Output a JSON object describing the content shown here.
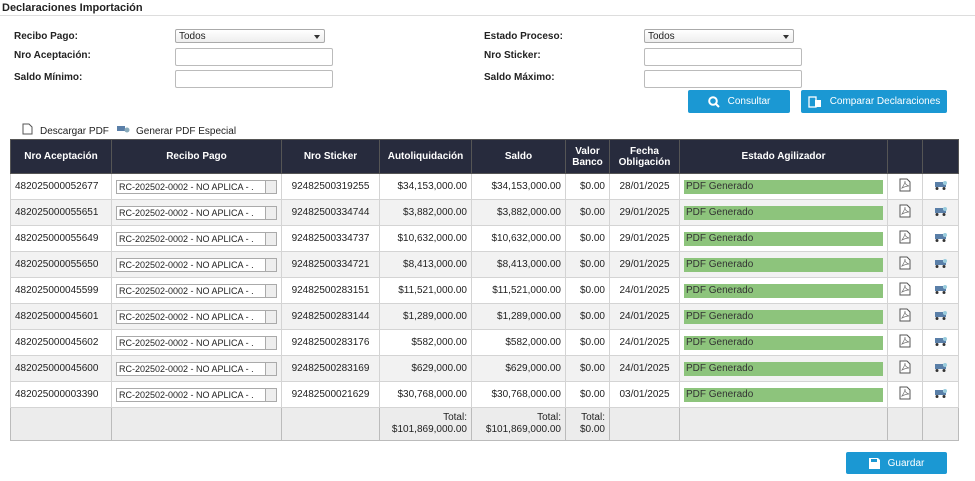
{
  "header": {
    "title": "Declaraciones Importación"
  },
  "filters": {
    "left": [
      {
        "label": "Recibo Pago:",
        "value": "Todos"
      },
      {
        "label": "Nro Aceptación:"
      },
      {
        "label": "Saldo Mínimo:"
      }
    ],
    "right": [
      {
        "label": "Estado Proceso:",
        "value": "Todos"
      },
      {
        "label": "Nro Sticker:"
      },
      {
        "label": "Saldo Máximo:"
      }
    ]
  },
  "buttons": {
    "consultar": "Consultar",
    "comparar": "Comparar Declaraciones",
    "guardar": "Guardar"
  },
  "links": [
    "Descargar PDF",
    "Generar PDF Especial"
  ],
  "table": {
    "columns": [
      "Nro Aceptación",
      "Recibo Pago",
      "Nro Sticker",
      "Autoliquidación",
      "Saldo",
      "Valor Banco",
      "Fecha Obligación",
      "Estado Agilizador"
    ],
    "rows": [
      [
        "482025000052677",
        "RC-202502-0002 - NO APLICA - .",
        "92482500319255",
        "$34,153,000.00",
        "$34,153,000.00",
        "$0.00",
        "28/01/2025",
        "PDF Generado"
      ],
      [
        "482025000055651",
        "RC-202502-0002 - NO APLICA - .",
        "92482500334744",
        "$3,882,000.00",
        "$3,882,000.00",
        "$0.00",
        "29/01/2025",
        "PDF Generado"
      ],
      [
        "482025000055649",
        "RC-202502-0002 - NO APLICA - .",
        "92482500334737",
        "$10,632,000.00",
        "$10,632,000.00",
        "$0.00",
        "29/01/2025",
        "PDF Generado"
      ],
      [
        "482025000055650",
        "RC-202502-0002 - NO APLICA - .",
        "92482500334721",
        "$8,413,000.00",
        "$8,413,000.00",
        "$0.00",
        "29/01/2025",
        "PDF Generado"
      ],
      [
        "482025000045599",
        "RC-202502-0002 - NO APLICA - .",
        "92482500283151",
        "$11,521,000.00",
        "$11,521,000.00",
        "$0.00",
        "24/01/2025",
        "PDF Generado"
      ],
      [
        "482025000045601",
        "RC-202502-0002 - NO APLICA - .",
        "92482500283144",
        "$1,289,000.00",
        "$1,289,000.00",
        "$0.00",
        "24/01/2025",
        "PDF Generado"
      ],
      [
        "482025000045602",
        "RC-202502-0002 - NO APLICA - .",
        "92482500283176",
        "$582,000.00",
        "$582,000.00",
        "$0.00",
        "24/01/2025",
        "PDF Generado"
      ],
      [
        "482025000045600",
        "RC-202502-0002 - NO APLICA - .",
        "92482500283169",
        "$629,000.00",
        "$629,000.00",
        "$0.00",
        "24/01/2025",
        "PDF Generado"
      ],
      [
        "482025000003390",
        "RC-202502-0002 - NO APLICA - .",
        "92482500021629",
        "$30,768,000.00",
        "$30,768,000.00",
        "$0.00",
        "03/01/2025",
        "PDF Generado"
      ]
    ],
    "totals": {
      "label": "Total:",
      "autoliquidacion": "$101,869,000.00",
      "saldo": "$101,869,000.00",
      "valor_banco": "$0.00"
    }
  }
}
